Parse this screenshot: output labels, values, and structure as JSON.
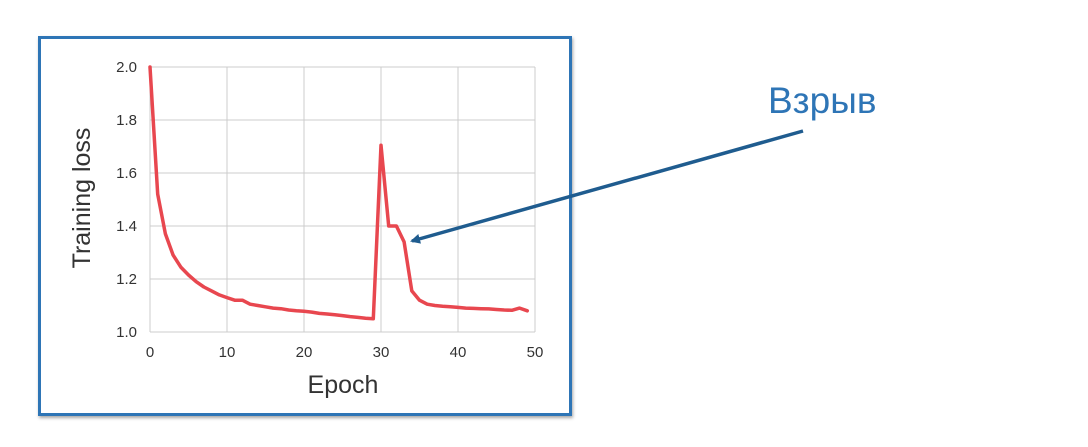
{
  "annotation": {
    "label": "Взрыв"
  },
  "colors": {
    "frame": "#2e75b6",
    "line": "#e8474f",
    "grid": "#cccccc",
    "arrow": "#1f5c8f",
    "annotation_text": "#2e75b6"
  },
  "chart_data": {
    "type": "line",
    "title": "",
    "xlabel": "Epoch",
    "ylabel": "Training loss",
    "xlim": [
      0,
      50
    ],
    "ylim": [
      1.0,
      2.0
    ],
    "xticks": [
      0,
      10,
      20,
      30,
      40,
      50
    ],
    "yticks": [
      1.0,
      1.2,
      1.4,
      1.6,
      1.8,
      2.0
    ],
    "ytick_labels": [
      "1.0",
      "1.2",
      "1.4",
      "1.6",
      "1.8",
      "2.0"
    ],
    "grid": true,
    "series": [
      {
        "x": [
          0,
          1,
          2,
          3,
          4,
          5,
          6,
          7,
          8,
          9,
          10,
          11,
          12,
          13,
          14,
          15,
          16,
          17,
          18,
          19,
          20,
          21,
          22,
          23,
          24,
          25,
          26,
          27,
          28,
          29,
          30,
          31,
          32,
          33,
          34,
          35,
          36,
          37,
          38,
          39,
          40,
          41,
          42,
          43,
          44,
          45,
          46,
          47,
          48,
          49
        ],
        "y": [
          2.0,
          1.52,
          1.37,
          1.29,
          1.245,
          1.215,
          1.19,
          1.17,
          1.155,
          1.14,
          1.13,
          1.12,
          1.12,
          1.105,
          1.1,
          1.095,
          1.09,
          1.088,
          1.083,
          1.08,
          1.078,
          1.075,
          1.07,
          1.068,
          1.065,
          1.062,
          1.058,
          1.055,
          1.052,
          1.05,
          1.705,
          1.4,
          1.4,
          1.34,
          1.155,
          1.12,
          1.105,
          1.1,
          1.097,
          1.095,
          1.093,
          1.09,
          1.089,
          1.088,
          1.087,
          1.085,
          1.083,
          1.082,
          1.09,
          1.08
        ]
      }
    ]
  }
}
